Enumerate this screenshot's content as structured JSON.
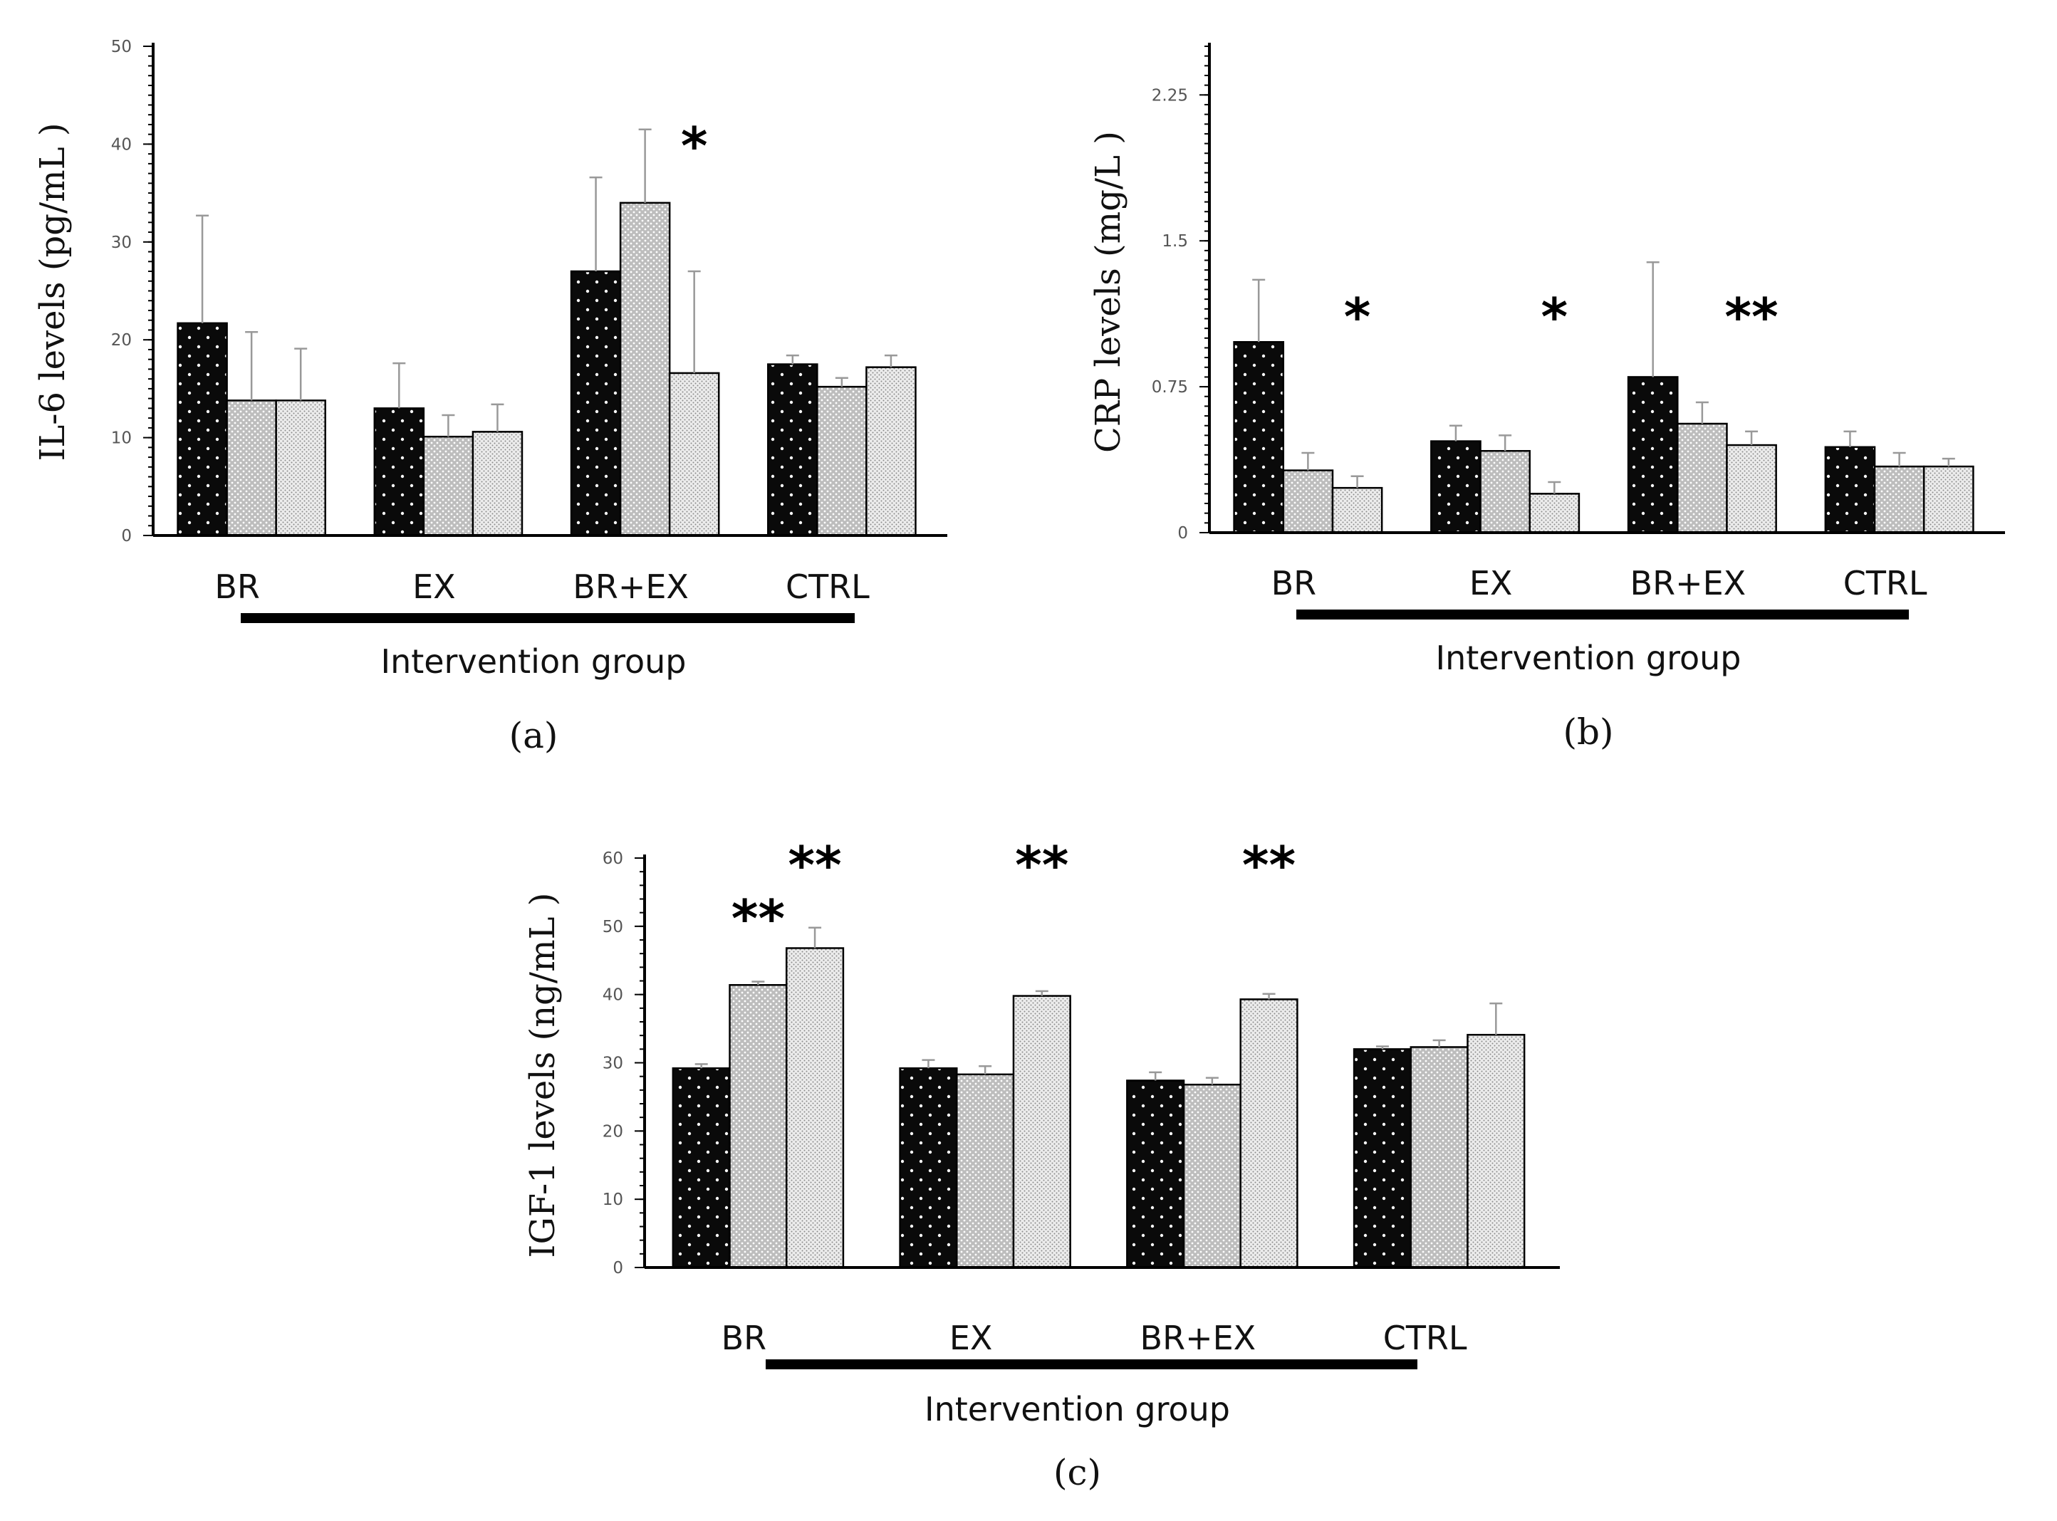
{
  "chart_data": [
    {
      "type": "bar",
      "panel_label": "(a)",
      "ylabel": "IL-6 levels (pg/mL )",
      "xlabel": "Intervention group",
      "categories": [
        "BR",
        "EX",
        "BR+EX",
        "CTRL"
      ],
      "ylim": [
        0,
        50
      ],
      "yticks": [
        "0",
        "10",
        "20",
        "30",
        "40",
        "50"
      ],
      "series": [
        {
          "name": "series 1",
          "values": [
            21.7,
            13.0,
            27.0,
            17.5
          ],
          "errors": [
            11.0,
            4.6,
            9.6,
            0.9
          ]
        },
        {
          "name": "series 2",
          "values": [
            13.8,
            10.1,
            34.0,
            15.2
          ],
          "errors": [
            7.0,
            2.2,
            7.5,
            0.9
          ]
        },
        {
          "name": "series 3",
          "values": [
            13.8,
            10.6,
            16.6,
            17.2
          ],
          "errors": [
            5.3,
            2.8,
            10.4,
            1.2
          ]
        }
      ],
      "annotations": [
        {
          "text": "*",
          "category": "BR+EX",
          "series": 2
        }
      ]
    },
    {
      "type": "bar",
      "panel_label": "(b)",
      "ylabel": "CRP levels (mg/L )",
      "xlabel": "Intervention group",
      "categories": [
        "BR",
        "EX",
        "BR+EX",
        "CTRL"
      ],
      "ylim": [
        0,
        2.5
      ],
      "yticks": [
        "0",
        "0.75",
        "1.5",
        "2.25"
      ],
      "series": [
        {
          "name": "series 1",
          "values": [
            0.98,
            0.47,
            0.8,
            0.44
          ],
          "errors": [
            0.32,
            0.08,
            0.59,
            0.08
          ]
        },
        {
          "name": "series 2",
          "values": [
            0.32,
            0.42,
            0.56,
            0.34
          ],
          "errors": [
            0.09,
            0.08,
            0.11,
            0.07
          ]
        },
        {
          "name": "series 3",
          "values": [
            0.23,
            0.2,
            0.45,
            0.34
          ],
          "errors": [
            0.06,
            0.06,
            0.07,
            0.04
          ]
        }
      ],
      "annotations": [
        {
          "text": "*",
          "category": "BR",
          "series": 2
        },
        {
          "text": "*",
          "category": "EX",
          "series": 2
        },
        {
          "text": "**",
          "category": "BR+EX",
          "series": 2
        }
      ]
    },
    {
      "type": "bar",
      "panel_label": "(c)",
      "ylabel": "IGF-1 levels (ng/mL )",
      "xlabel": "Intervention group",
      "categories": [
        "BR",
        "EX",
        "BR+EX",
        "CTRL"
      ],
      "ylim": [
        0,
        60
      ],
      "yticks": [
        "0",
        "10",
        "20",
        "30",
        "40",
        "50",
        "60"
      ],
      "series": [
        {
          "name": "series 1",
          "values": [
            29.2,
            29.2,
            27.4,
            32.0
          ],
          "errors": [
            0.6,
            1.2,
            1.2,
            0.4
          ]
        },
        {
          "name": "series 2",
          "values": [
            41.4,
            28.3,
            26.8,
            32.3
          ],
          "errors": [
            0.5,
            1.2,
            1.0,
            1.0
          ]
        },
        {
          "name": "series 3",
          "values": [
            46.8,
            39.8,
            39.3,
            34.1
          ],
          "errors": [
            3.0,
            0.7,
            0.8,
            4.6
          ]
        }
      ],
      "annotations": [
        {
          "text": "**",
          "category": "BR",
          "series": 1
        },
        {
          "text": "**",
          "category": "BR",
          "series": 2
        },
        {
          "text": "**",
          "category": "EX",
          "series": 2
        },
        {
          "text": "**",
          "category": "BR+EX",
          "series": 2
        }
      ]
    }
  ]
}
